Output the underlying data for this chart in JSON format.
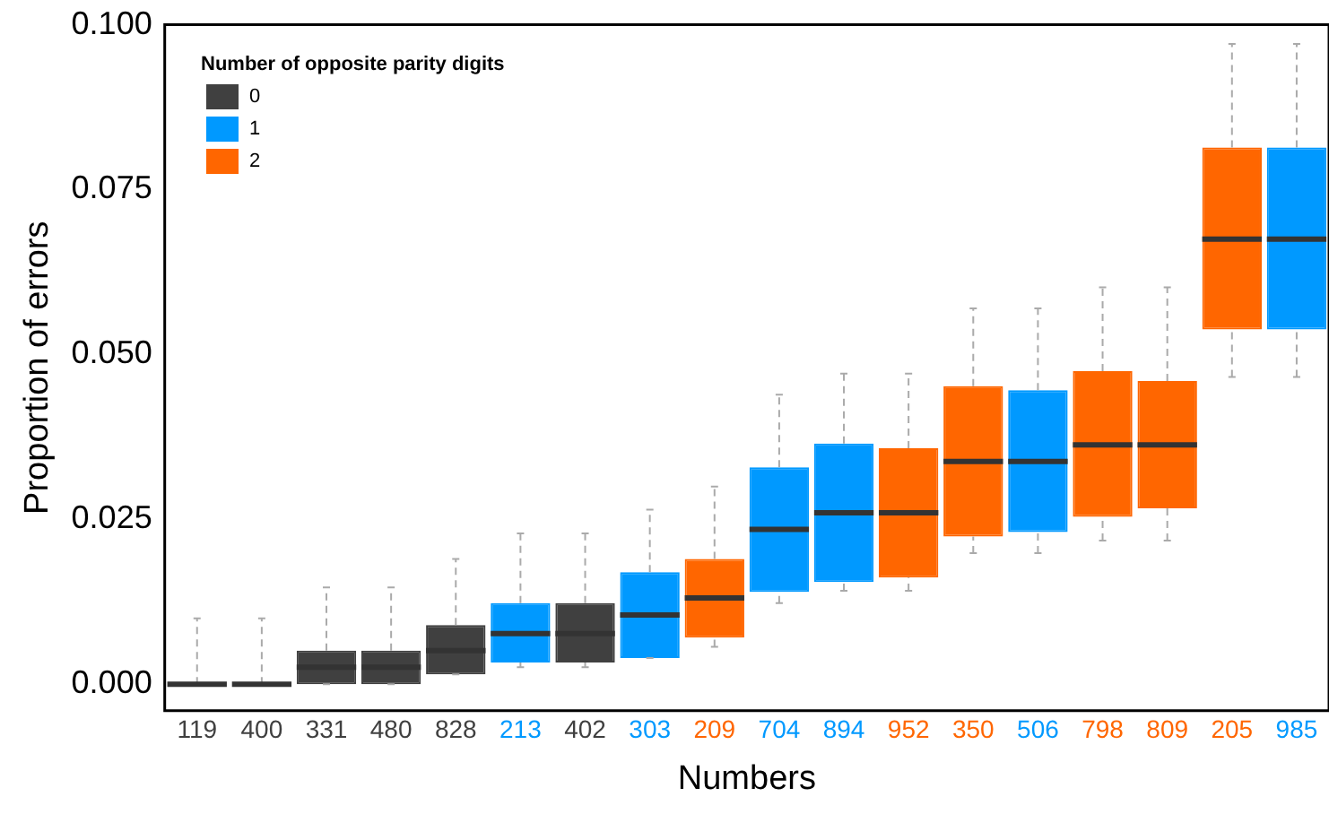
{
  "chart_data": {
    "type": "box",
    "xlabel": "Numbers",
    "ylabel": "Proportion of errors",
    "legend_title": "Number of opposite parity digits",
    "legend": "top left",
    "grid": false,
    "categories": [
      "119",
      "400",
      "331",
      "480",
      "828",
      "213",
      "402",
      "303",
      "209",
      "704",
      "894",
      "952",
      "350",
      "506",
      "798",
      "809",
      "205",
      "985"
    ],
    "ylim": [
      -0.004,
      0.1
    ],
    "yticks": [
      {
        "value": 0,
        "label": "0.000"
      },
      {
        "value": 0.025,
        "label": "0.025"
      },
      {
        "value": 0.05,
        "label": "0.050"
      },
      {
        "value": 0.075,
        "label": "0.075"
      },
      {
        "value": 0.1,
        "label": "0.100"
      }
    ],
    "series": [
      {
        "name": "0",
        "color": "#404040",
        "boxes": [
          {
            "low": 0,
            "q1": 0,
            "median": 0,
            "q3": 0,
            "high": 0.01
          },
          {
            "low": 0,
            "q1": 0,
            "median": 0,
            "q3": 0,
            "high": 0.01
          },
          {
            "low": 0,
            "q1": 0,
            "median": 0.0026,
            "q3": 0.0051,
            "high": 0.0147
          },
          {
            "low": 0,
            "q1": 0,
            "median": 0.0026,
            "q3": 0.0051,
            "high": 0.0147
          },
          {
            "low": 0.0015,
            "q1": 0.0015,
            "median": 0.0051,
            "q3": 0.009,
            "high": 0.019
          },
          null,
          {
            "low": 0.0026,
            "q1": 0.0033,
            "median": 0.0077,
            "q3": 0.0123,
            "high": 0.0229
          },
          null,
          null,
          null,
          null,
          null,
          null,
          null,
          null,
          null,
          null,
          null
        ]
      },
      {
        "name": "1",
        "color": "#0099ff",
        "boxes": [
          null,
          null,
          null,
          null,
          null,
          {
            "low": 0.0026,
            "q1": 0.0033,
            "median": 0.0077,
            "q3": 0.0123,
            "high": 0.0229
          },
          null,
          {
            "low": 0.004,
            "q1": 0.004,
            "median": 0.0105,
            "q3": 0.017,
            "high": 0.0265
          },
          null,
          {
            "low": 0.0123,
            "q1": 0.014,
            "median": 0.0235,
            "q3": 0.0329,
            "high": 0.0439
          },
          {
            "low": 0.0142,
            "q1": 0.0155,
            "median": 0.026,
            "q3": 0.0365,
            "high": 0.0471
          },
          null,
          null,
          {
            "low": 0.0199,
            "q1": 0.0231,
            "median": 0.0338,
            "q3": 0.0446,
            "high": 0.057
          },
          null,
          null,
          null,
          {
            "low": 0.0466,
            "q1": 0.0538,
            "median": 0.0675,
            "q3": 0.0814,
            "high": 0.0971
          }
        ]
      },
      {
        "name": "2",
        "color": "#ff6600",
        "boxes": [
          null,
          null,
          null,
          null,
          null,
          null,
          null,
          null,
          {
            "low": 0.0057,
            "q1": 0.0071,
            "median": 0.0131,
            "q3": 0.019,
            "high": 0.03
          },
          null,
          null,
          {
            "low": 0.0142,
            "q1": 0.0162,
            "median": 0.026,
            "q3": 0.0358,
            "high": 0.0471
          },
          {
            "low": 0.0199,
            "q1": 0.0224,
            "median": 0.0338,
            "q3": 0.0452,
            "high": 0.057
          },
          null,
          {
            "low": 0.0218,
            "q1": 0.0254,
            "median": 0.0363,
            "q3": 0.0475,
            "high": 0.0602
          },
          {
            "low": 0.0218,
            "q1": 0.0267,
            "median": 0.0363,
            "q3": 0.046,
            "high": 0.0602
          },
          {
            "low": 0.0466,
            "q1": 0.0538,
            "median": 0.0675,
            "q3": 0.0814,
            "high": 0.0971
          },
          null
        ]
      }
    ]
  }
}
